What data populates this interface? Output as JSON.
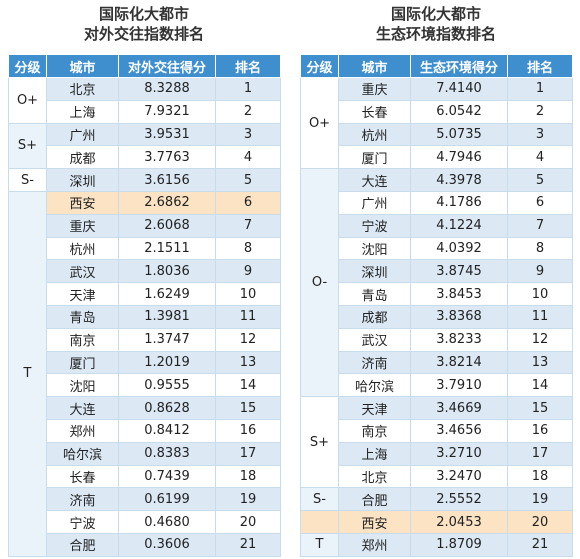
{
  "tables": [
    {
      "title": [
        "国际化大都市",
        "对外交往指数排名"
      ],
      "headers": [
        "分级",
        "城市",
        "对外交往得分",
        "排名"
      ],
      "groups": [
        {
          "grade": "O+",
          "rows": [
            {
              "city": "北京",
              "score": "8.3288",
              "rank": "1"
            },
            {
              "city": "上海",
              "score": "7.9321",
              "rank": "2"
            }
          ]
        },
        {
          "grade": "S+",
          "rows": [
            {
              "city": "广州",
              "score": "3.9531",
              "rank": "3"
            },
            {
              "city": "成都",
              "score": "3.7763",
              "rank": "4"
            }
          ]
        },
        {
          "grade": "S-",
          "rows": [
            {
              "city": "深圳",
              "score": "3.6156",
              "rank": "5"
            }
          ]
        },
        {
          "grade": "T",
          "rows": [
            {
              "city": "西安",
              "score": "2.6862",
              "rank": "6",
              "highlight": true
            },
            {
              "city": "重庆",
              "score": "2.6068",
              "rank": "7"
            },
            {
              "city": "杭州",
              "score": "2.1511",
              "rank": "8"
            },
            {
              "city": "武汉",
              "score": "1.8036",
              "rank": "9"
            },
            {
              "city": "天津",
              "score": "1.6249",
              "rank": "10"
            },
            {
              "city": "青岛",
              "score": "1.3981",
              "rank": "11"
            },
            {
              "city": "南京",
              "score": "1.3747",
              "rank": "12"
            },
            {
              "city": "厦门",
              "score": "1.2019",
              "rank": "13"
            },
            {
              "city": "沈阳",
              "score": "0.9555",
              "rank": "14"
            },
            {
              "city": "大连",
              "score": "0.8628",
              "rank": "15"
            },
            {
              "city": "郑州",
              "score": "0.8412",
              "rank": "16"
            },
            {
              "city": "哈尔滨",
              "score": "0.8383",
              "rank": "17"
            },
            {
              "city": "长春",
              "score": "0.7439",
              "rank": "18"
            },
            {
              "city": "济南",
              "score": "0.6199",
              "rank": "19"
            },
            {
              "city": "宁波",
              "score": "0.4680",
              "rank": "20"
            },
            {
              "city": "合肥",
              "score": "0.3606",
              "rank": "21"
            }
          ]
        }
      ]
    },
    {
      "title": [
        "国际化大都市",
        "生态环境指数排名"
      ],
      "headers": [
        "分级",
        "城市",
        "生态环境得分",
        "排名"
      ],
      "groups": [
        {
          "grade": "O+",
          "rows": [
            {
              "city": "重庆",
              "score": "7.4140",
              "rank": "1"
            },
            {
              "city": "长春",
              "score": "6.0542",
              "rank": "2"
            },
            {
              "city": "杭州",
              "score": "5.0735",
              "rank": "3"
            },
            {
              "city": "厦门",
              "score": "4.7946",
              "rank": "4"
            }
          ]
        },
        {
          "grade": "O-",
          "rows": [
            {
              "city": "大连",
              "score": "4.3978",
              "rank": "5"
            },
            {
              "city": "广州",
              "score": "4.1786",
              "rank": "6"
            },
            {
              "city": "宁波",
              "score": "4.1224",
              "rank": "7"
            },
            {
              "city": "沈阳",
              "score": "4.0392",
              "rank": "8"
            },
            {
              "city": "深圳",
              "score": "3.8745",
              "rank": "9"
            },
            {
              "city": "青岛",
              "score": "3.8453",
              "rank": "10"
            },
            {
              "city": "成都",
              "score": "3.8368",
              "rank": "11"
            },
            {
              "city": "武汉",
              "score": "3.8233",
              "rank": "12"
            },
            {
              "city": "济南",
              "score": "3.8214",
              "rank": "13"
            },
            {
              "city": "哈尔滨",
              "score": "3.7910",
              "rank": "14"
            }
          ]
        },
        {
          "grade": "S+",
          "rows": [
            {
              "city": "天津",
              "score": "3.4669",
              "rank": "15"
            },
            {
              "city": "南京",
              "score": "3.4656",
              "rank": "16"
            },
            {
              "city": "上海",
              "score": "3.2710",
              "rank": "17"
            },
            {
              "city": "北京",
              "score": "3.2470",
              "rank": "18"
            }
          ]
        },
        {
          "grade": "S-",
          "rows": [
            {
              "city": "合肥",
              "score": "2.5552",
              "rank": "19"
            }
          ]
        },
        {
          "grade": null,
          "rows": [
            {
              "city": "西安",
              "score": "2.0453",
              "rank": "20",
              "highlight": true
            }
          ]
        },
        {
          "grade": "T",
          "rows": [
            {
              "city": "郑州",
              "score": "1.8709",
              "rank": "21"
            }
          ]
        }
      ]
    }
  ]
}
